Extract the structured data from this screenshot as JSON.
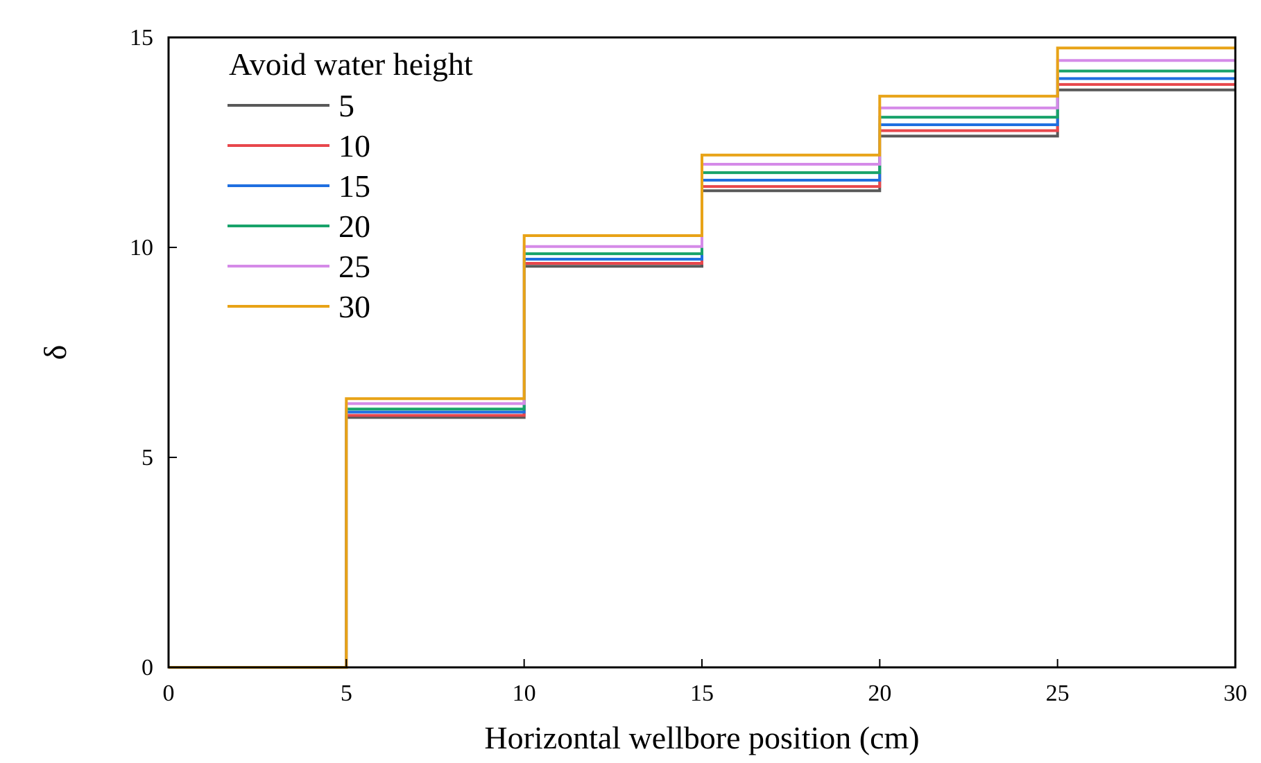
{
  "chart_data": {
    "type": "line",
    "title": "",
    "xlabel": "Horizontal wellbore position (cm)",
    "ylabel": "δ",
    "xlim": [
      0,
      30
    ],
    "ylim": [
      0,
      15
    ],
    "xticks": [
      0,
      5,
      10,
      15,
      20,
      25,
      30
    ],
    "yticks": [
      0,
      5,
      10,
      15
    ],
    "grid": false,
    "legend": {
      "title": "Avoid water height",
      "position": "top-left"
    },
    "step_edges": [
      0,
      5,
      10,
      15,
      20,
      25,
      30
    ],
    "series": [
      {
        "name": "5",
        "color": "#595959",
        "levels": [
          0,
          5.95,
          9.55,
          11.35,
          12.65,
          13.75
        ]
      },
      {
        "name": "10",
        "color": "#e8474c",
        "levels": [
          0,
          6.0,
          9.62,
          11.45,
          12.78,
          13.88
        ]
      },
      {
        "name": "15",
        "color": "#1f6fe0",
        "levels": [
          0,
          6.08,
          9.72,
          11.6,
          12.92,
          14.02
        ]
      },
      {
        "name": "20",
        "color": "#18a36a",
        "levels": [
          0,
          6.15,
          9.85,
          11.78,
          13.1,
          14.2
        ]
      },
      {
        "name": "25",
        "color": "#d58ae8",
        "levels": [
          0,
          6.28,
          10.02,
          11.98,
          13.32,
          14.45
        ]
      },
      {
        "name": "30",
        "color": "#e8a317",
        "levels": [
          0,
          6.4,
          10.28,
          12.2,
          13.6,
          14.75
        ]
      }
    ]
  }
}
